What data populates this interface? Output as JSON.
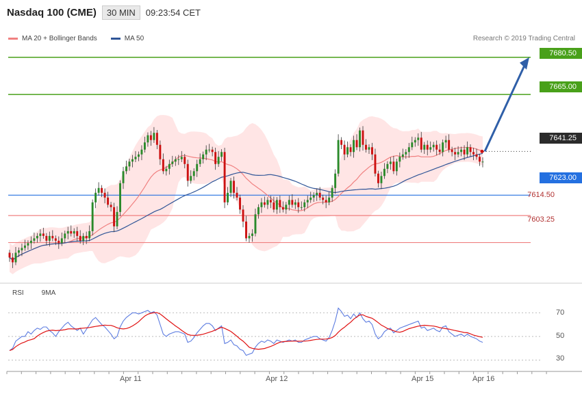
{
  "header": {
    "instrument": "Nasdaq 100 (CME)",
    "timeframe": "30 MIN",
    "time": "09:23:54 CET"
  },
  "legend": {
    "ma20": "MA 20 + Bollinger Bands",
    "ma50": "MA 50",
    "credit": "Research © 2019 Trading Central"
  },
  "rsi_legend": {
    "rsi": "RSI",
    "ma9": "9MA"
  },
  "levels": {
    "r2": "7680.50",
    "r1": "7665.00",
    "last": "7641.25",
    "s1": "7623.00",
    "s2": "7614.50",
    "s3": "7603.25"
  },
  "colors": {
    "bull": "#2a8a2a",
    "bear": "#cc1111",
    "ma20": "#f08080",
    "ma50": "#2f5597",
    "band_fill": "#ffe0e0",
    "resistance": "#49a01a",
    "support_blue": "#2470e0",
    "support_red": "#f08080",
    "rsi": "#5b7be0",
    "ma9": "#e01010",
    "arrow": "#2f5fa8"
  },
  "chart_data": [
    {
      "type": "candlestick",
      "title": "Nasdaq 100 (CME) 30 MIN",
      "ylim": [
        7588,
        7693
      ],
      "x_ticks": [
        "Apr 11",
        "Apr 12",
        "Apr 15",
        "Apr 16"
      ],
      "price_levels": [
        7680.5,
        7665.0,
        7641.25,
        7623.0,
        7614.5,
        7603.25
      ],
      "close": [
        7597,
        7595,
        7599,
        7600,
        7601,
        7602,
        7603,
        7604,
        7605,
        7606,
        7607,
        7606,
        7604,
        7606,
        7605,
        7604,
        7603,
        7605,
        7607,
        7608,
        7607,
        7608,
        7606,
        7604,
        7606,
        7605,
        7608,
        7620,
        7624,
        7626,
        7624,
        7622,
        7619,
        7618,
        7610,
        7616,
        7628,
        7633,
        7635,
        7637,
        7638,
        7639,
        7640,
        7642,
        7645,
        7648,
        7646,
        7649,
        7644,
        7638,
        7633,
        7634,
        7636,
        7637,
        7638,
        7638,
        7639,
        7636,
        7629,
        7631,
        7633,
        7636,
        7638,
        7640,
        7642,
        7642,
        7641,
        7636,
        7639,
        7641,
        7620,
        7624,
        7629,
        7624,
        7622,
        7617,
        7612,
        7605,
        7606,
        7607,
        7615,
        7618,
        7620,
        7619,
        7621,
        7620,
        7617,
        7621,
        7618,
        7617,
        7619,
        7621,
        7619,
        7620,
        7618,
        7618,
        7620,
        7621,
        7622,
        7623,
        7624,
        7622,
        7621,
        7620,
        7622,
        7626,
        7632,
        7646,
        7644,
        7640,
        7643,
        7641,
        7646,
        7643,
        7650,
        7644,
        7642,
        7643,
        7640,
        7632,
        7628,
        7631,
        7634,
        7636,
        7637,
        7633,
        7637,
        7639,
        7640,
        7641,
        7643,
        7645,
        7646,
        7647,
        7642,
        7644,
        7642,
        7643,
        7644,
        7642,
        7641,
        7645,
        7646,
        7642,
        7641,
        7640,
        7641,
        7642,
        7640,
        7643,
        7641,
        7640,
        7639,
        7637,
        7637
      ],
      "rsi": [
        38,
        40,
        46,
        48,
        50,
        50,
        54,
        52,
        55,
        57,
        56,
        58,
        58,
        55,
        53,
        50,
        54,
        57,
        60,
        62,
        59,
        57,
        55,
        57,
        52,
        56,
        60,
        64,
        66,
        63,
        60,
        58,
        55,
        52,
        48,
        50,
        58,
        63,
        66,
        68,
        70,
        70,
        69,
        70,
        71,
        72,
        70,
        71,
        68,
        60,
        52,
        50,
        52,
        53,
        54,
        54,
        53,
        52,
        45,
        46,
        49,
        53,
        56,
        59,
        61,
        61,
        59,
        55,
        57,
        59,
        44,
        45,
        47,
        43,
        42,
        39,
        38,
        34,
        35,
        36,
        41,
        44,
        46,
        45,
        47,
        46,
        44,
        47,
        46,
        45,
        46,
        47,
        46,
        47,
        45,
        45,
        47,
        48,
        49,
        50,
        50,
        48,
        47,
        46,
        49,
        55,
        63,
        74,
        71,
        67,
        68,
        65,
        69,
        66,
        70,
        65,
        62,
        63,
        60,
        52,
        48,
        50,
        54,
        56,
        57,
        53,
        55,
        57,
        58,
        59,
        60,
        61,
        62,
        63,
        57,
        58,
        55,
        56,
        57,
        55,
        54,
        58,
        59,
        54,
        52,
        50,
        51,
        52,
        50,
        52,
        50,
        49,
        48,
        46,
        45
      ],
      "rsi_ylim": [
        25,
        80
      ],
      "rsi_ticks": [
        70,
        50,
        30
      ]
    }
  ]
}
